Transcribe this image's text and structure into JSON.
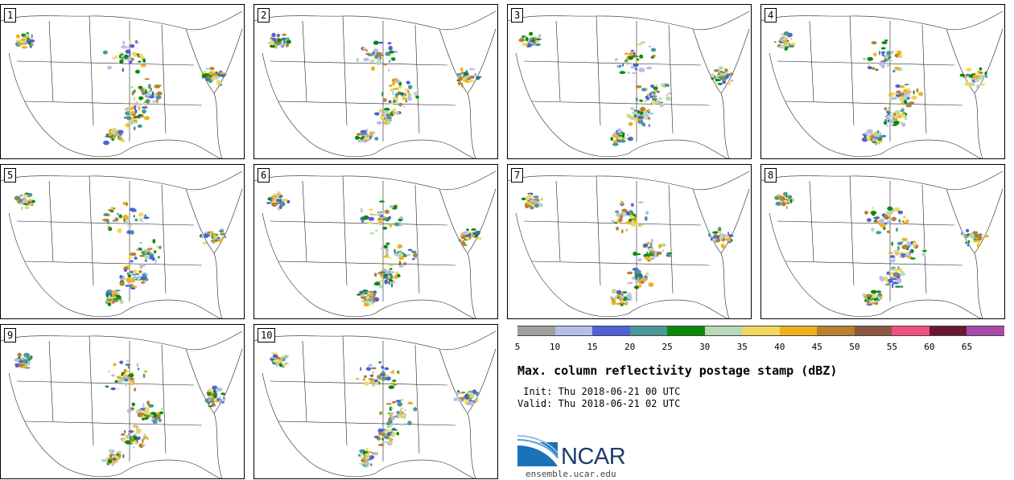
{
  "members": [
    {
      "label": "1"
    },
    {
      "label": "2"
    },
    {
      "label": "3"
    },
    {
      "label": "4"
    },
    {
      "label": "5"
    },
    {
      "label": "6"
    },
    {
      "label": "7"
    },
    {
      "label": "8"
    },
    {
      "label": "9"
    },
    {
      "label": "10"
    }
  ],
  "colorbar": {
    "colors": [
      "#a0a0a0",
      "#b4bee8",
      "#5060d8",
      "#4a9898",
      "#0a8a0a",
      "#b8d8b8",
      "#f0d860",
      "#f0b020",
      "#b88030",
      "#8a5840",
      "#f05080",
      "#6a1838",
      "#a848a8"
    ],
    "ticks": [
      "5",
      "10",
      "15",
      "20",
      "25",
      "30",
      "35",
      "40",
      "45",
      "50",
      "55",
      "60",
      "65"
    ]
  },
  "title": "Max. column reflectivity postage stamp (dBZ)",
  "init_text": " Init: Thu 2018-06-21 00 UTC",
  "valid_text": "Valid: Thu 2018-06-21 02 UTC",
  "logo": {
    "name": "ncar-logo",
    "text": "NCAR",
    "url": "ensemble.ucar.edu"
  }
}
